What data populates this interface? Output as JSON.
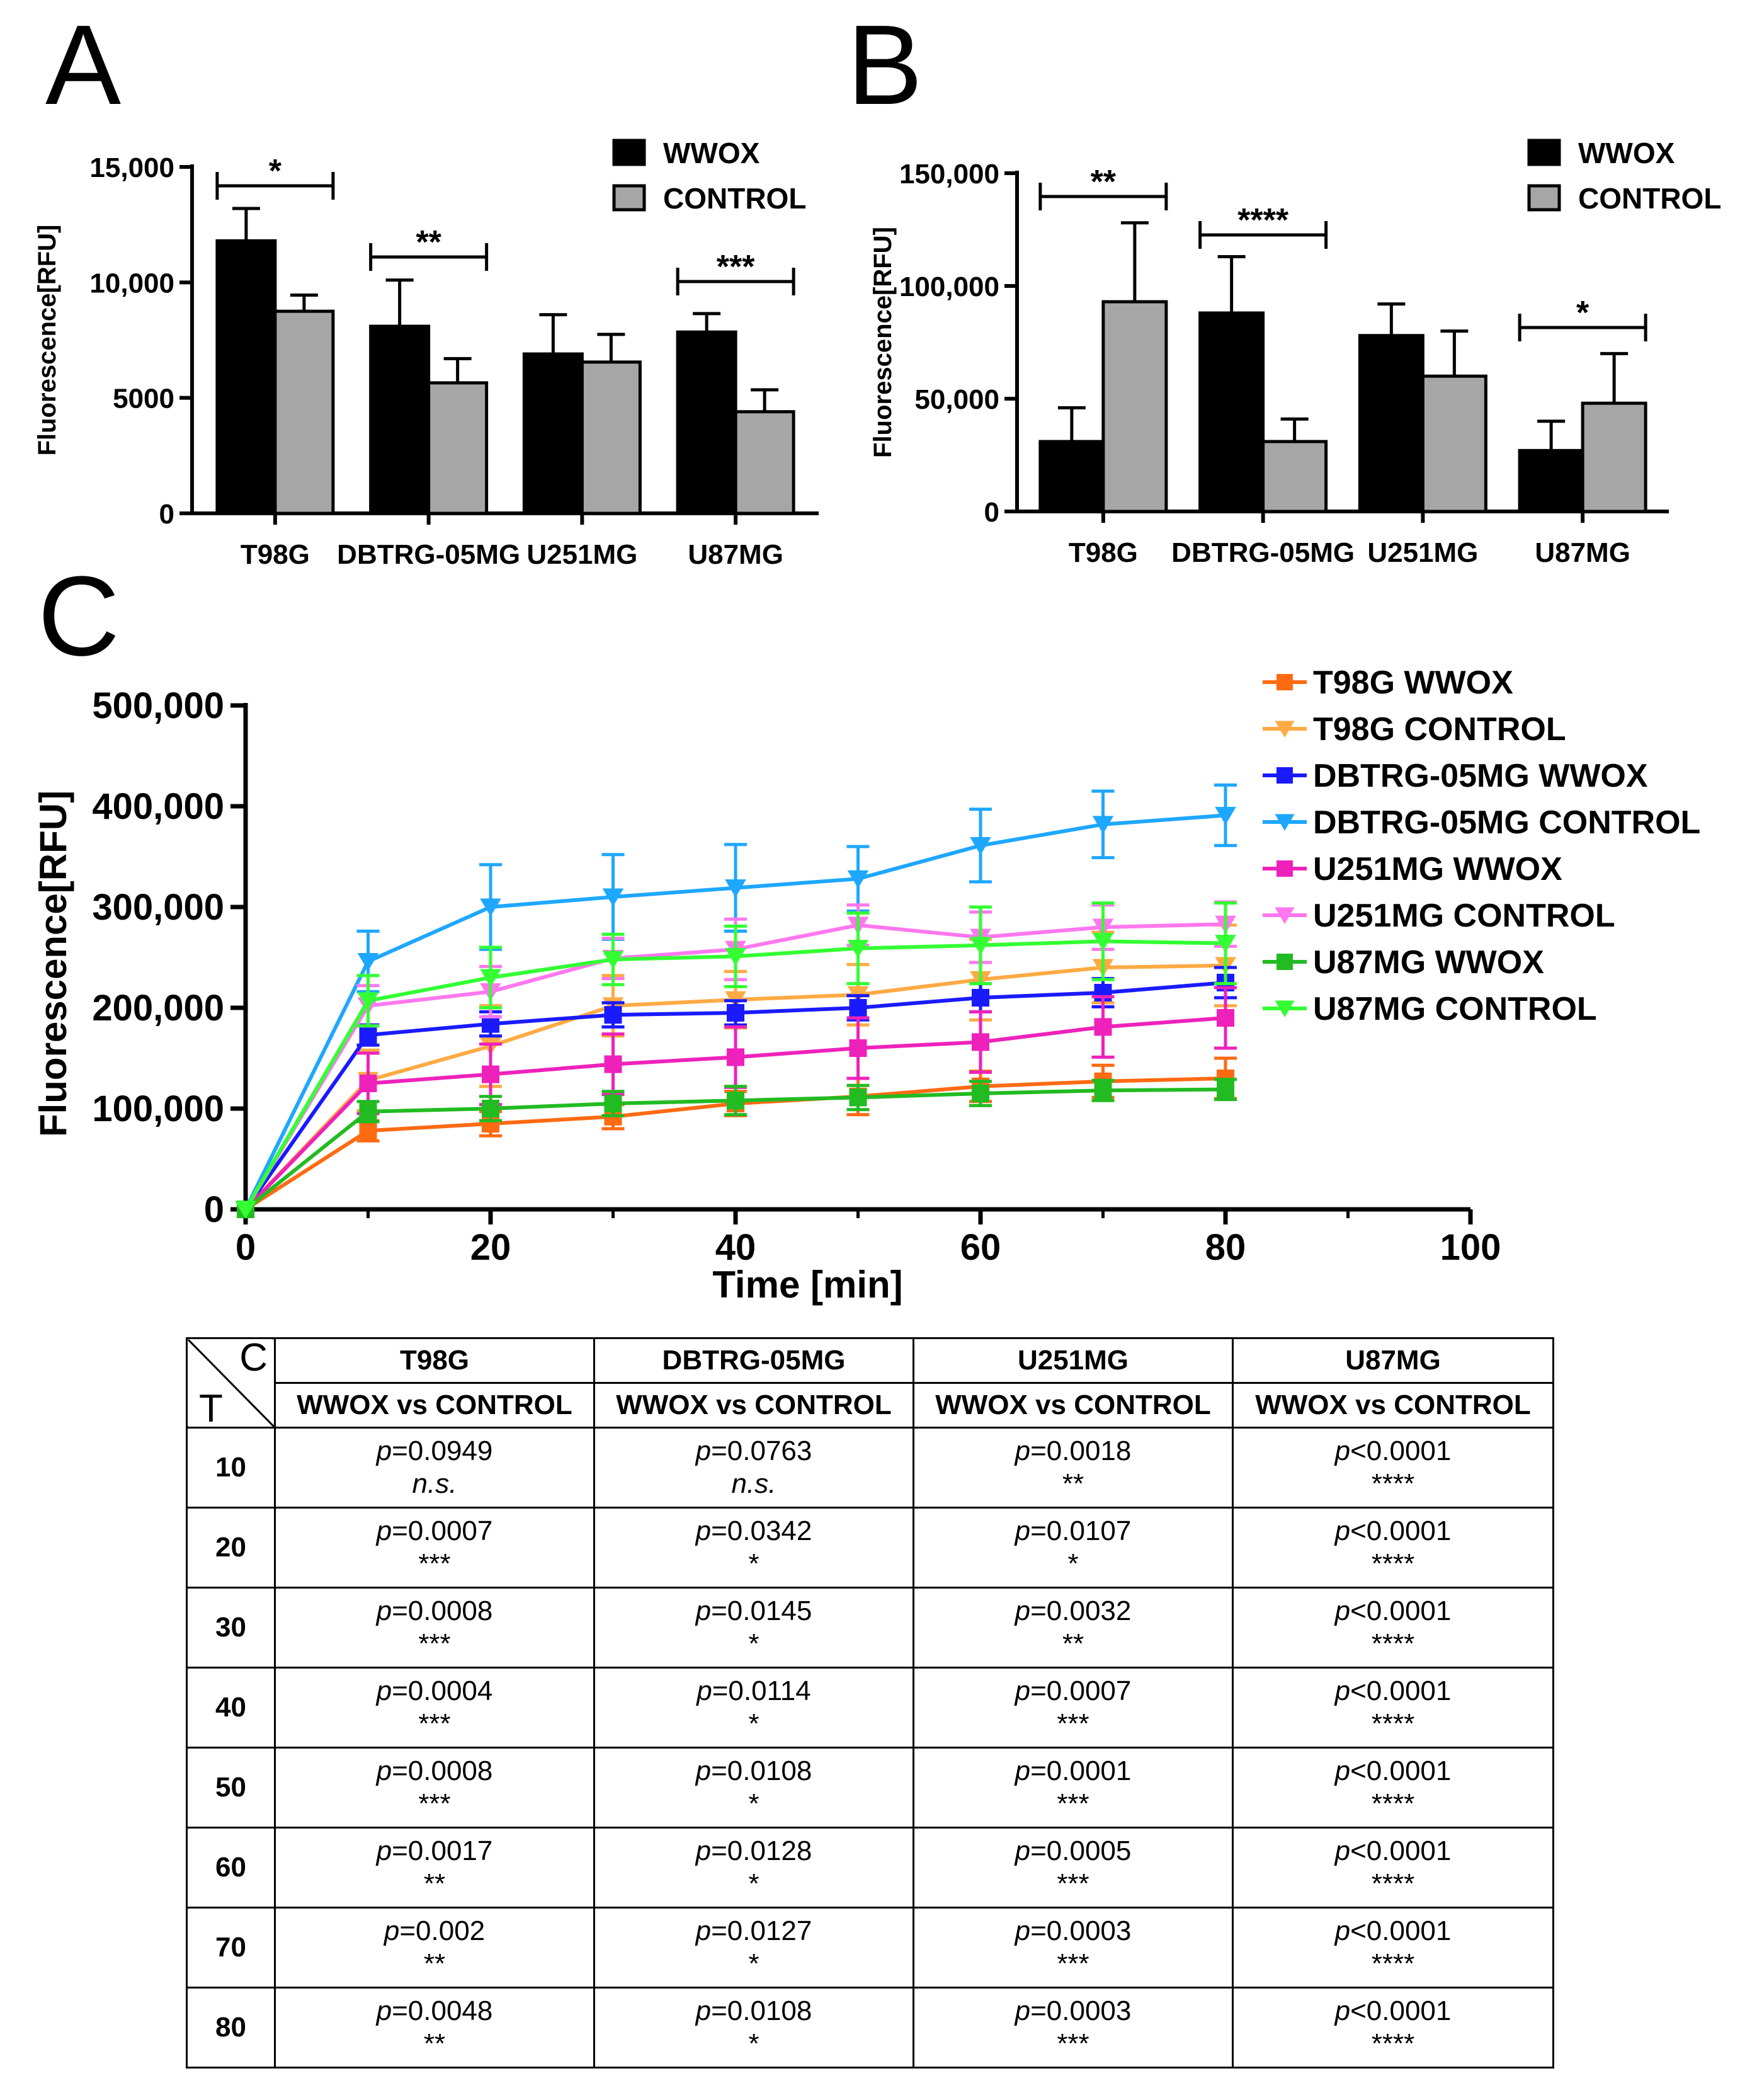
{
  "panel_labels": {
    "A": "A",
    "B": "B",
    "C": "C"
  },
  "chart_data": [
    {
      "id": "A",
      "type": "bar",
      "ylabel": "Fluorescence[RFU]",
      "ylim": [
        0,
        15000
      ],
      "yticks": [
        0,
        5000,
        10000,
        15000
      ],
      "ytick_labels": [
        "0",
        "5000",
        "10,000",
        "15,000"
      ],
      "categories": [
        "T98G",
        "DBTRG-05MG",
        "U251MG",
        "U87MG"
      ],
      "series": [
        {
          "name": "WWOX",
          "color": "#000000",
          "values": [
            11800,
            8100,
            6900,
            7850
          ],
          "errors": [
            1400,
            2000,
            1700,
            800
          ]
        },
        {
          "name": "CONTROL",
          "color": "#a6a6a6",
          "values": [
            8750,
            5650,
            6550,
            4400
          ],
          "errors": [
            700,
            1050,
            1200,
            950
          ]
        }
      ],
      "significance": [
        "*",
        "**",
        "",
        "***"
      ],
      "legend_position": "top-right"
    },
    {
      "id": "B",
      "type": "bar",
      "ylabel": "Fluorescence[RFU]",
      "ylim": [
        0,
        150000
      ],
      "yticks": [
        0,
        50000,
        100000,
        150000
      ],
      "ytick_labels": [
        "0",
        "50,000",
        "100,000",
        "150,000"
      ],
      "categories": [
        "T98G",
        "DBTRG-05MG",
        "U251MG",
        "U87MG"
      ],
      "series": [
        {
          "name": "WWOX",
          "color": "#000000",
          "values": [
            31000,
            88000,
            78000,
            27000
          ],
          "errors": [
            15000,
            25000,
            14000,
            13000
          ]
        },
        {
          "name": "CONTROL",
          "color": "#a6a6a6",
          "values": [
            93000,
            31000,
            60000,
            48000
          ],
          "errors": [
            35000,
            10000,
            20000,
            22000
          ]
        }
      ],
      "significance": [
        "**",
        "****",
        "",
        "*"
      ],
      "legend_position": "top-right"
    },
    {
      "id": "C",
      "type": "line",
      "xlabel": "Time [min]",
      "ylabel": "Fluorescence[RFU]",
      "xlim": [
        0,
        100
      ],
      "ylim": [
        0,
        500000
      ],
      "xticks": [
        0,
        20,
        40,
        60,
        80,
        100
      ],
      "xtick_labels": [
        "0",
        "20",
        "40",
        "60",
        "80",
        "100"
      ],
      "yticks": [
        0,
        100000,
        200000,
        300000,
        400000,
        500000
      ],
      "ytick_labels": [
        "0",
        "100,000",
        "200,000",
        "300,000",
        "400,000",
        "500,000"
      ],
      "x": [
        0,
        10,
        20,
        30,
        40,
        50,
        60,
        70,
        80
      ],
      "legend_position": "right",
      "series": [
        {
          "name": "T98G WWOX",
          "color": "#ff6a13",
          "marker": "square",
          "values": [
            0,
            78000,
            85000,
            92000,
            105000,
            112000,
            122000,
            127000,
            130000
          ],
          "errors": [
            0,
            10000,
            12000,
            12000,
            12000,
            18000,
            15000,
            16000,
            20000
          ]
        },
        {
          "name": "T98G CONTROL",
          "color": "#ffaa44",
          "marker": "triangle-down",
          "values": [
            0,
            128000,
            162000,
            202000,
            208000,
            213000,
            228000,
            240000,
            242000
          ],
          "errors": [
            0,
            30000,
            40000,
            30000,
            28000,
            30000,
            40000,
            35000,
            40000
          ]
        },
        {
          "name": "DBTRG-05MG WWOX",
          "color": "#1a1aff",
          "marker": "square",
          "values": [
            0,
            173000,
            184000,
            193000,
            195000,
            200000,
            210000,
            215000,
            225000
          ],
          "errors": [
            0,
            10000,
            12000,
            12000,
            12000,
            12000,
            14000,
            14000,
            15000
          ]
        },
        {
          "name": "DBTRG-05MG CONTROL",
          "color": "#1ea7ff",
          "marker": "triangle-down",
          "values": [
            0,
            246000,
            300000,
            310000,
            319000,
            328000,
            361000,
            382000,
            391000
          ],
          "errors": [
            0,
            30000,
            42000,
            42000,
            43000,
            32000,
            36000,
            33000,
            30000
          ]
        },
        {
          "name": "U251MG WWOX",
          "color": "#ee22bb",
          "marker": "square",
          "values": [
            0,
            125000,
            134000,
            144000,
            151000,
            160000,
            166000,
            181000,
            190000
          ],
          "errors": [
            0,
            30000,
            30000,
            30000,
            30000,
            30000,
            30000,
            30000,
            30000
          ]
        },
        {
          "name": "U251MG CONTROL",
          "color": "#ff77ee",
          "marker": "triangle-down",
          "values": [
            0,
            202000,
            216000,
            249000,
            258000,
            282000,
            270000,
            280000,
            283000
          ],
          "errors": [
            0,
            20000,
            25000,
            20000,
            30000,
            20000,
            25000,
            22000,
            22000
          ]
        },
        {
          "name": "U87MG WWOX",
          "color": "#22bb22",
          "marker": "square",
          "values": [
            0,
            97000,
            100000,
            105000,
            108000,
            111000,
            115000,
            118000,
            119000
          ],
          "errors": [
            0,
            10000,
            12000,
            12000,
            14000,
            12000,
            12000,
            10000,
            10000
          ]
        },
        {
          "name": "U87MG CONTROL",
          "color": "#33ff33",
          "marker": "triangle-down",
          "values": [
            0,
            207000,
            230000,
            248000,
            251000,
            259000,
            262000,
            266000,
            264000
          ],
          "errors": [
            0,
            25000,
            30000,
            25000,
            30000,
            35000,
            38000,
            38000,
            40000
          ]
        }
      ]
    }
  ],
  "table": {
    "corner_c": "C",
    "corner_t": "T",
    "columns": [
      "T98G",
      "DBTRG-05MG",
      "U251MG",
      "U87MG"
    ],
    "subheader": "WWOX vs CONTROL",
    "rows": [
      {
        "t": "10",
        "cells": [
          [
            "=0.0949",
            "n.s."
          ],
          [
            "=0.0763",
            "n.s."
          ],
          [
            "=0.0018",
            "**"
          ],
          [
            "<0.0001",
            "****"
          ]
        ]
      },
      {
        "t": "20",
        "cells": [
          [
            "=0.0007",
            "***"
          ],
          [
            "=0.0342",
            "*"
          ],
          [
            "=0.0107",
            "*"
          ],
          [
            "<0.0001",
            "****"
          ]
        ]
      },
      {
        "t": "30",
        "cells": [
          [
            "=0.0008",
            "***"
          ],
          [
            "=0.0145",
            "*"
          ],
          [
            "=0.0032",
            "**"
          ],
          [
            "<0.0001",
            "****"
          ]
        ]
      },
      {
        "t": "40",
        "cells": [
          [
            "=0.0004",
            "***"
          ],
          [
            "=0.0114",
            "*"
          ],
          [
            "=0.0007",
            "***"
          ],
          [
            "<0.0001",
            "****"
          ]
        ]
      },
      {
        "t": "50",
        "cells": [
          [
            "=0.0008",
            "***"
          ],
          [
            "=0.0108",
            "*"
          ],
          [
            "=0.0001",
            "***"
          ],
          [
            "<0.0001",
            "****"
          ]
        ]
      },
      {
        "t": "60",
        "cells": [
          [
            "=0.0017",
            "**"
          ],
          [
            "=0.0128",
            "*"
          ],
          [
            "=0.0005",
            "***"
          ],
          [
            "<0.0001",
            "****"
          ]
        ]
      },
      {
        "t": "70",
        "cells": [
          [
            "=0.002",
            "**"
          ],
          [
            "=0.0127",
            "*"
          ],
          [
            "=0.0003",
            "***"
          ],
          [
            "<0.0001",
            "****"
          ]
        ]
      },
      {
        "t": "80",
        "cells": [
          [
            "=0.0048",
            "**"
          ],
          [
            "=0.0108",
            "*"
          ],
          [
            "=0.0003",
            "***"
          ],
          [
            "<0.0001",
            "****"
          ]
        ]
      }
    ]
  }
}
